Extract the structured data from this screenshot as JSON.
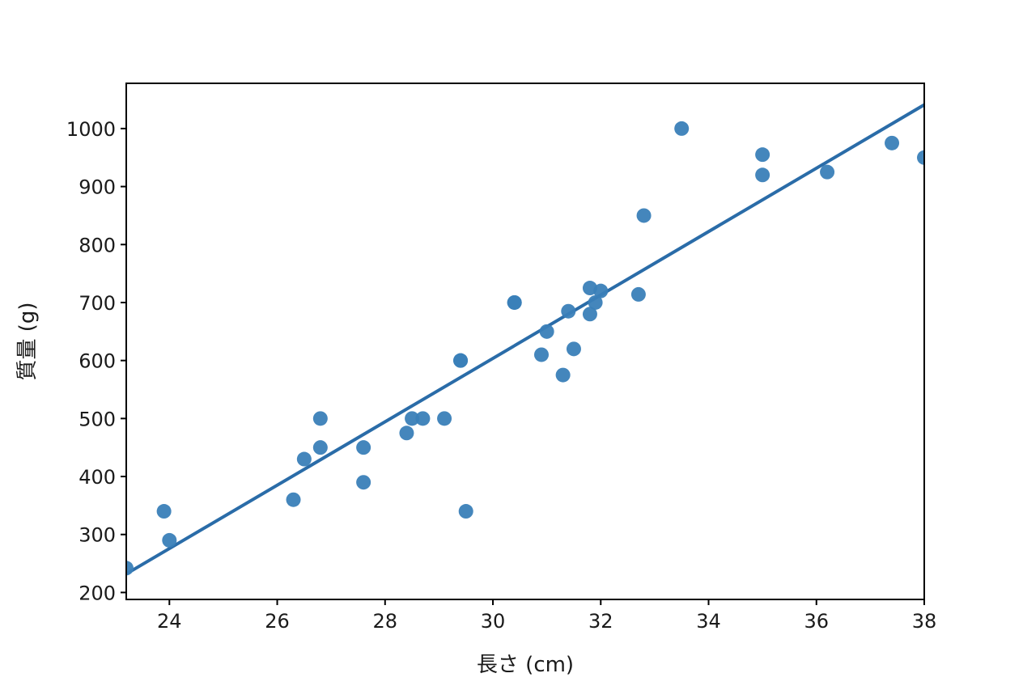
{
  "chart_data": {
    "type": "scatter",
    "title": "",
    "xlabel": "長さ (cm)",
    "ylabel": "質量 (g)",
    "xlim": [
      23.2,
      38.0
    ],
    "ylim": [
      188,
      1078
    ],
    "xticks": [
      24,
      26,
      28,
      30,
      32,
      34,
      36,
      38
    ],
    "yticks": [
      200,
      300,
      400,
      500,
      600,
      700,
      800,
      900,
      1000
    ],
    "grid": false,
    "legend": "none",
    "colors": {
      "points": "#3a7fb8",
      "line": "#2a6ca8"
    },
    "series": [
      {
        "points": [
          [
            23.2,
            242
          ],
          [
            23.9,
            340
          ],
          [
            24.0,
            290
          ],
          [
            26.3,
            360
          ],
          [
            26.5,
            430
          ],
          [
            26.8,
            450
          ],
          [
            26.8,
            500
          ],
          [
            27.6,
            390
          ],
          [
            27.6,
            450
          ],
          [
            28.4,
            475
          ],
          [
            28.5,
            500
          ],
          [
            28.7,
            500
          ],
          [
            29.1,
            500
          ],
          [
            29.4,
            600
          ],
          [
            29.4,
            600
          ],
          [
            29.5,
            340
          ],
          [
            30.4,
            700
          ],
          [
            30.4,
            700
          ],
          [
            30.9,
            610
          ],
          [
            31.0,
            650
          ],
          [
            31.3,
            575
          ],
          [
            31.4,
            685
          ],
          [
            31.5,
            620
          ],
          [
            31.8,
            680
          ],
          [
            31.8,
            725
          ],
          [
            31.9,
            700
          ],
          [
            32.0,
            720
          ],
          [
            32.7,
            714
          ],
          [
            32.8,
            850
          ],
          [
            33.5,
            1000
          ],
          [
            35.0,
            920
          ],
          [
            35.0,
            955
          ],
          [
            36.2,
            925
          ],
          [
            37.4,
            975
          ],
          [
            38.0,
            950
          ]
        ]
      }
    ],
    "regression_line": {
      "x": [
        23.2,
        38.0
      ],
      "y": [
        232,
        1041
      ]
    }
  }
}
